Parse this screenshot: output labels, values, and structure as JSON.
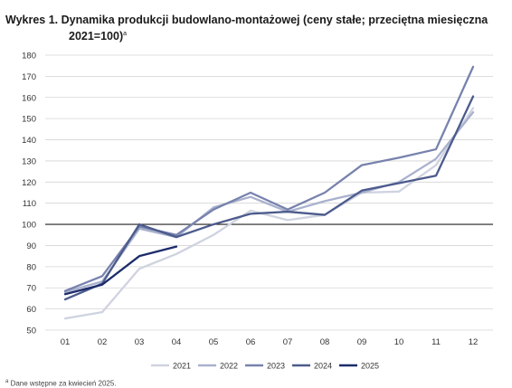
{
  "title": {
    "line1": "Wykres 1. Dynamika produkcji budowlano-montażowej (ceny stałe; przeciętna miesięczna",
    "line2": "2021=100)",
    "marker": "a"
  },
  "footnote": {
    "marker": "a",
    "text": "Dane wstępne za kwiecień 2025."
  },
  "chart_data": {
    "type": "line",
    "categories": [
      "01",
      "02",
      "03",
      "04",
      "05",
      "06",
      "07",
      "08",
      "09",
      "10",
      "11",
      "12"
    ],
    "ylim": [
      50,
      180
    ],
    "yticks": [
      50,
      60,
      70,
      80,
      90,
      100,
      110,
      120,
      130,
      140,
      150,
      160,
      170,
      180
    ],
    "reference_line": 100,
    "grid": true,
    "legend_position": "bottom",
    "series": [
      {
        "name": "2021",
        "color": "#cfd3e0",
        "values": [
          55.5,
          58.5,
          79,
          86,
          95,
          106.5,
          102,
          104.5,
          115,
          115.5,
          128,
          155
        ]
      },
      {
        "name": "2022",
        "color": "#a9b1cd",
        "values": [
          68,
          73,
          98,
          94,
          108,
          113,
          106,
          111,
          115,
          120,
          131,
          153
        ]
      },
      {
        "name": "2023",
        "color": "#7782ad",
        "values": [
          68.5,
          75.5,
          99,
          95,
          107,
          115,
          107,
          115,
          128,
          131.5,
          135.5,
          174.5
        ]
      },
      {
        "name": "2024",
        "color": "#4c5b8c",
        "values": [
          64.5,
          72,
          100,
          94,
          100,
          105,
          106,
          104.5,
          116,
          119.5,
          123,
          160.5
        ]
      },
      {
        "name": "2025",
        "color": "#1c2c6b",
        "values": [
          67,
          71.5,
          85,
          89.5,
          null,
          null,
          null,
          null,
          null,
          null,
          null,
          null
        ]
      }
    ]
  }
}
